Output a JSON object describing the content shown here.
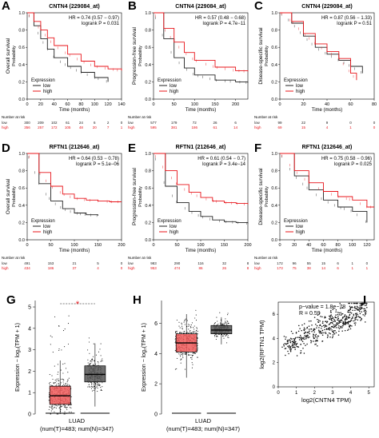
{
  "colors": {
    "low": "#222222",
    "high": "#e8141a",
    "luad_tumor": "#f05a5a",
    "luad_normal": "#555555",
    "annot": "#e8141a"
  },
  "chart_data": [
    {
      "id": "A",
      "type": "line",
      "title": "CNTN4 (229084_at)",
      "ylabel": "Overall survival",
      "ylabel2": "Probability",
      "xlabel": "Time (months)",
      "xlim": [
        0,
        140
      ],
      "ylim": [
        0,
        1
      ],
      "xticks": [
        "0",
        "20",
        "40",
        "60",
        "80",
        "100",
        "120",
        "140"
      ],
      "yticks": [
        "0.0",
        "0.2",
        "0.4",
        "0.6",
        "0.8",
        "1.0"
      ],
      "hr": "HR = 0.74 (0.57 − 0.97)",
      "logrank": "logrank P = 0.031",
      "legend": {
        "title": "Expression",
        "items": [
          "low",
          "high"
        ]
      },
      "series": [
        {
          "name": "low",
          "x": [
            0,
            10,
            20,
            30,
            40,
            60,
            80,
            100,
            120
          ],
          "y": [
            1.0,
            0.85,
            0.7,
            0.58,
            0.48,
            0.38,
            0.31,
            0.25,
            0.2
          ]
        },
        {
          "name": "high",
          "x": [
            0,
            10,
            20,
            30,
            40,
            60,
            80,
            100,
            120,
            140
          ],
          "y": [
            1.0,
            0.9,
            0.8,
            0.71,
            0.62,
            0.52,
            0.44,
            0.38,
            0.35,
            0.33
          ]
        }
      ],
      "risk": {
        "title": "Number at risk",
        "rows": [
          {
            "name": "low",
            "values": [
              "300",
              "209",
              "102",
              "61",
              "24",
              "6",
              "2",
              "0"
            ]
          },
          {
            "name": "high",
            "values": [
              "356",
              "257",
              "172",
              "105",
              "48",
              "20",
              "7",
              "1"
            ]
          }
        ]
      }
    },
    {
      "id": "B",
      "type": "line",
      "title": "CNTN4 (229084_at)",
      "ylabel": "Progression-free survival",
      "ylabel2": "Probability",
      "xlabel": "Time (months)",
      "xlim": [
        0,
        230
      ],
      "ylim": [
        0,
        1
      ],
      "xticks": [
        "0",
        "50",
        "100",
        "150",
        "200"
      ],
      "yticks": [
        "0.0",
        "0.2",
        "0.4",
        "0.6",
        "0.8",
        "1.0"
      ],
      "hr": "HR = 0.57 (0.48 − 0.68)",
      "logrank": "logrank P = 4.7e−11",
      "legend": {
        "title": "Expression",
        "items": [
          "low",
          "high"
        ]
      },
      "series": [
        {
          "name": "low",
          "x": [
            0,
            25,
            50,
            75,
            100,
            150,
            200,
            230
          ],
          "y": [
            1.0,
            0.7,
            0.48,
            0.36,
            0.28,
            0.22,
            0.2,
            0.19
          ]
        },
        {
          "name": "high",
          "x": [
            0,
            25,
            50,
            75,
            100,
            150,
            200,
            230
          ],
          "y": [
            1.0,
            0.82,
            0.66,
            0.54,
            0.45,
            0.37,
            0.33,
            0.32
          ]
        }
      ],
      "risk": {
        "title": "Number at risk",
        "rows": [
          {
            "name": "low",
            "values": [
              "577",
              "179",
              "72",
              "26",
              "6"
            ]
          },
          {
            "name": "high",
            "values": [
              "595",
              "381",
              "186",
              "61",
              "14"
            ]
          }
        ]
      }
    },
    {
      "id": "C",
      "type": "line",
      "title": "CNTN4 (229084_at)",
      "ylabel": "Disease-specific survival",
      "ylabel2": "Probability",
      "xlabel": "Time (months)",
      "xlim": [
        0,
        80
      ],
      "ylim": [
        0,
        1
      ],
      "xticks": [
        "0",
        "20",
        "40",
        "60",
        "80"
      ],
      "yticks": [
        "0.0",
        "0.2",
        "0.4",
        "0.6",
        "0.8",
        "1.0"
      ],
      "hr": "HR = 0.87 (0.56 − 1.33)",
      "logrank": "logrank P = 0.51",
      "legend": {
        "title": "Expression",
        "items": [
          "low",
          "high"
        ]
      },
      "series": [
        {
          "name": "low",
          "x": [
            0,
            10,
            20,
            30,
            40,
            50,
            60,
            70
          ],
          "y": [
            1.0,
            0.88,
            0.73,
            0.6,
            0.52,
            0.45,
            0.38,
            0.3
          ]
        },
        {
          "name": "high",
          "x": [
            0,
            10,
            20,
            30,
            40,
            50,
            60,
            65
          ],
          "y": [
            1.0,
            0.9,
            0.76,
            0.64,
            0.55,
            0.47,
            0.3,
            0.22
          ]
        }
      ],
      "risk": {
        "title": "Number at risk",
        "rows": [
          {
            "name": "low",
            "values": [
              "99",
              "22",
              "9",
              "0",
              "0"
            ]
          },
          {
            "name": "high",
            "values": [
              "69",
              "15",
              "4",
              "1",
              "0"
            ]
          }
        ]
      }
    },
    {
      "id": "D",
      "type": "line",
      "title": "RFTN1 (212646_at)",
      "ylabel": "Overall survival",
      "ylabel2": "Probability",
      "xlabel": "Time (months)",
      "xlim": [
        0,
        200
      ],
      "ylim": [
        0,
        1
      ],
      "xticks": [
        "0",
        "50",
        "100",
        "150",
        "200"
      ],
      "yticks": [
        "0.0",
        "0.2",
        "0.4",
        "0.6",
        "0.8",
        "1.0"
      ],
      "hr": "HR = 0.64 (0.53 − 0.78)",
      "logrank": "logrank P = 5.1e−06",
      "legend": {
        "title": "Expression",
        "items": [
          "low",
          "high"
        ]
      },
      "series": [
        {
          "name": "low",
          "x": [
            0,
            25,
            50,
            75,
            100,
            125,
            150
          ],
          "y": [
            1.0,
            0.65,
            0.45,
            0.36,
            0.31,
            0.29,
            0.28
          ]
        },
        {
          "name": "high",
          "x": [
            0,
            25,
            50,
            75,
            100,
            125,
            150,
            175,
            200
          ],
          "y": [
            1.0,
            0.78,
            0.62,
            0.53,
            0.48,
            0.46,
            0.45,
            0.44,
            0.44
          ]
        }
      ],
      "risk": {
        "title": "Number at risk",
        "rows": [
          {
            "name": "low",
            "values": [
              "491",
              "153",
              "21",
              "5",
              "0"
            ]
          },
          {
            "name": "high",
            "values": [
              "434",
              "186",
              "37",
              "4",
              "0"
            ]
          }
        ]
      }
    },
    {
      "id": "E",
      "type": "line",
      "title": "RFTN1 (212646_at)",
      "ylabel": "Progression-free survival",
      "ylabel2": "Probability",
      "xlabel": "Time (months)",
      "xlim": [
        0,
        200
      ],
      "ylim": [
        0,
        1
      ],
      "xticks": [
        "0",
        "50",
        "100",
        "150",
        "200"
      ],
      "yticks": [
        "0.0",
        "0.2",
        "0.4",
        "0.6",
        "0.8",
        "1.0"
      ],
      "hr": "HR = 0.61 (0.54 − 0.7)",
      "logrank": "logrank P = 3.4e−14",
      "legend": {
        "title": "Expression",
        "items": [
          "low",
          "high"
        ]
      },
      "series": [
        {
          "name": "low",
          "x": [
            0,
            25,
            50,
            75,
            100,
            125,
            150,
            175,
            200
          ],
          "y": [
            1.0,
            0.62,
            0.43,
            0.33,
            0.27,
            0.23,
            0.21,
            0.2,
            0.19
          ]
        },
        {
          "name": "high",
          "x": [
            0,
            25,
            50,
            75,
            100,
            125,
            150,
            175,
            200
          ],
          "y": [
            1.0,
            0.8,
            0.64,
            0.55,
            0.49,
            0.45,
            0.43,
            0.42,
            0.41
          ]
        }
      ],
      "risk": {
        "title": "Number at risk",
        "rows": [
          {
            "name": "low",
            "values": [
              "983",
              "290",
              "116",
              "32",
              "8"
            ]
          },
          {
            "name": "high",
            "values": [
              "953",
              "474",
              "86",
              "26",
              "8"
            ]
          }
        ]
      }
    },
    {
      "id": "F",
      "type": "line",
      "title": "RFTN1 (212646_at)",
      "ylabel": "Disease-specific survival",
      "ylabel2": "Probability",
      "xlabel": "Time (months)",
      "xlim": [
        0,
        130
      ],
      "ylim": [
        0,
        1
      ],
      "xticks": [
        "0",
        "20",
        "40",
        "60",
        "80",
        "100",
        "120"
      ],
      "yticks": [
        "0.0",
        "0.2",
        "0.4",
        "0.6",
        "0.8",
        "1.0"
      ],
      "hr": "HR = 0.75 (0.58 − 0.96)",
      "logrank": "logrank P = 0.025",
      "legend": {
        "title": "Expression",
        "items": [
          "low",
          "high"
        ]
      },
      "series": [
        {
          "name": "low",
          "x": [
            0,
            20,
            40,
            60,
            80,
            100,
            120
          ],
          "y": [
            1.0,
            0.74,
            0.58,
            0.46,
            0.38,
            0.33,
            0.2
          ]
        },
        {
          "name": "high",
          "x": [
            0,
            20,
            40,
            60,
            80,
            100,
            120,
            130
          ],
          "y": [
            1.0,
            0.8,
            0.66,
            0.56,
            0.5,
            0.46,
            0.38,
            0.38
          ]
        }
      ],
      "risk": {
        "title": "Number at risk",
        "rows": [
          {
            "name": "low",
            "values": [
              "172",
              "96",
              "55",
              "15",
              "6",
              "1",
              "0"
            ]
          },
          {
            "name": "high",
            "values": [
              "173",
              "75",
              "38",
              "14",
              "6",
              "1",
              "1"
            ]
          }
        ]
      }
    },
    {
      "id": "G",
      "type": "box",
      "ylabel": "Expression − log₂(TPM + 1)",
      "xlabel": "LUAD",
      "xlabel2": "(num(T)=483; num(N)=347)",
      "ylim": [
        0,
        5.3
      ],
      "yticks": [
        "0",
        "1",
        "2",
        "3",
        "4",
        "5"
      ],
      "significance": "*",
      "groups": [
        {
          "name": "Tumor",
          "q1": 0.45,
          "median": 0.85,
          "q3": 1.3,
          "whisker_low": 0.0,
          "whisker_high": 2.5,
          "max": 4.6
        },
        {
          "name": "Normal",
          "q1": 1.5,
          "median": 1.85,
          "q3": 2.25,
          "whisker_low": 0.35,
          "whisker_high": 3.3,
          "max": 3.6
        }
      ]
    },
    {
      "id": "H",
      "type": "box",
      "ylabel": "Expression − log₂(TPM + 1)",
      "xlabel": "LUAD",
      "xlabel2": "(num(T)=483; num(N)=347)",
      "ylim": [
        0,
        7.5
      ],
      "yticks": [
        "0",
        "2",
        "4",
        "6"
      ],
      "groups": [
        {
          "name": "Tumor",
          "q1": 4.1,
          "median": 4.7,
          "q3": 5.3,
          "whisker_low": 2.4,
          "whisker_high": 6.6,
          "max": 7.1
        },
        {
          "name": "Normal",
          "q1": 5.3,
          "median": 5.55,
          "q3": 5.85,
          "whisker_low": 4.6,
          "whisker_high": 6.4,
          "max": 6.7
        }
      ]
    },
    {
      "id": "I",
      "type": "scatter",
      "ylabel": "log2(RFTN1 TPM)",
      "xlabel": "log2(CNTN4 TPM)",
      "annotation": [
        "p−value = 1.8e−78",
        "R = 0.59"
      ],
      "xlim": [
        0,
        5.3
      ],
      "ylim": [
        0,
        7
      ],
      "xticks": [
        "0",
        "1",
        "2",
        "3",
        "4",
        "5"
      ],
      "yticks": [
        "0",
        "2",
        "4",
        "6"
      ],
      "trend": {
        "slope": 0.72,
        "intercept": 3.1
      }
    }
  ]
}
